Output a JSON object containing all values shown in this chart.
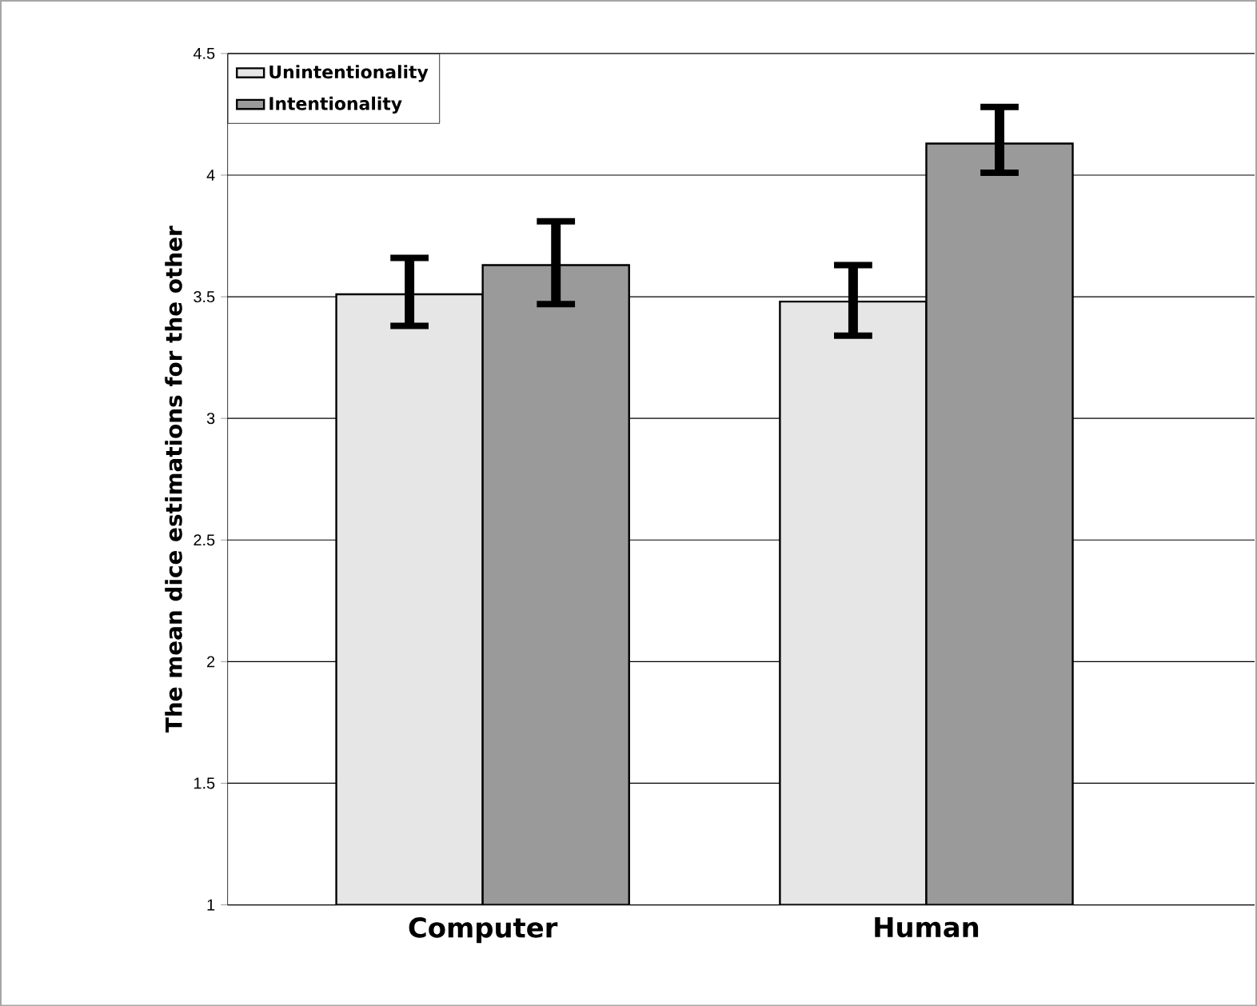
{
  "chart_data": {
    "type": "bar",
    "ylabel": "The mean dice estimations for the other",
    "categories": [
      "Computer",
      "Human"
    ],
    "series": [
      {
        "name": "Unintentionality",
        "color": "#e6e6e6",
        "values": [
          3.51,
          3.48
        ],
        "errors": [
          [
            3.38,
            3.66
          ],
          [
            3.34,
            3.63
          ]
        ]
      },
      {
        "name": "Intentionality",
        "color": "#9a9a9a",
        "values": [
          3.63,
          4.13
        ],
        "errors": [
          [
            3.47,
            3.81
          ],
          [
            4.01,
            4.28
          ]
        ]
      }
    ],
    "ylim": [
      1,
      4.5
    ],
    "yticks": [
      1,
      1.5,
      2,
      2.5,
      3,
      3.5,
      4,
      4.5
    ],
    "grid": "y",
    "legend": "top left"
  }
}
